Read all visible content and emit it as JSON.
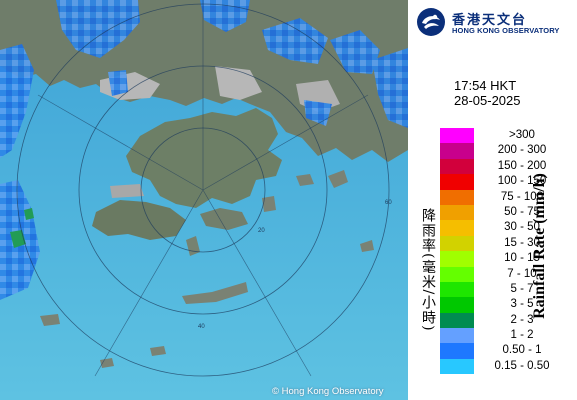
{
  "logo": {
    "name_zh": "香港天文台",
    "name_en": "HONG KONG OBSERVATORY"
  },
  "time": "17:54 HKT",
  "date": "28-05-2025",
  "legend": {
    "title_zh": "降雨率(毫米/小時)",
    "title_en": "Rainfall Rate (mm/h)",
    "items": [
      {
        "label": ">300",
        "color": "#ff00ff"
      },
      {
        "label": "200 - 300",
        "color": "#c8008c"
      },
      {
        "label": "150 - 200",
        "color": "#d2003c"
      },
      {
        "label": "100 - 150",
        "color": "#f00000"
      },
      {
        "label": "75 - 100",
        "color": "#f06e00"
      },
      {
        "label": "50 - 75",
        "color": "#f0a000"
      },
      {
        "label": "30 - 50",
        "color": "#f5be00"
      },
      {
        "label": "15 - 30",
        "color": "#d2d200"
      },
      {
        "label": "10 - 15",
        "color": "#a0ff00"
      },
      {
        "label": "7 - 10",
        "color": "#64ff00"
      },
      {
        "label": "5 - 7",
        "color": "#1ee600"
      },
      {
        "label": "3 - 5",
        "color": "#00c800"
      },
      {
        "label": "2 - 3",
        "color": "#008c50"
      },
      {
        "label": "1 - 2",
        "color": "#64a0ff"
      },
      {
        "label": "0.50 - 1",
        "color": "#1e78ff"
      },
      {
        "label": "0.15 - 0.50",
        "color": "#28c8ff"
      }
    ]
  },
  "range_rings_km": [
    "20",
    "40",
    "60"
  ],
  "copyright": "© Hong Kong Observatory",
  "colors": {
    "sea": "#54b6dc",
    "land": "#6f7d6a",
    "urban": "#b4b4b4",
    "logo_blue": "#0b2f7a"
  }
}
